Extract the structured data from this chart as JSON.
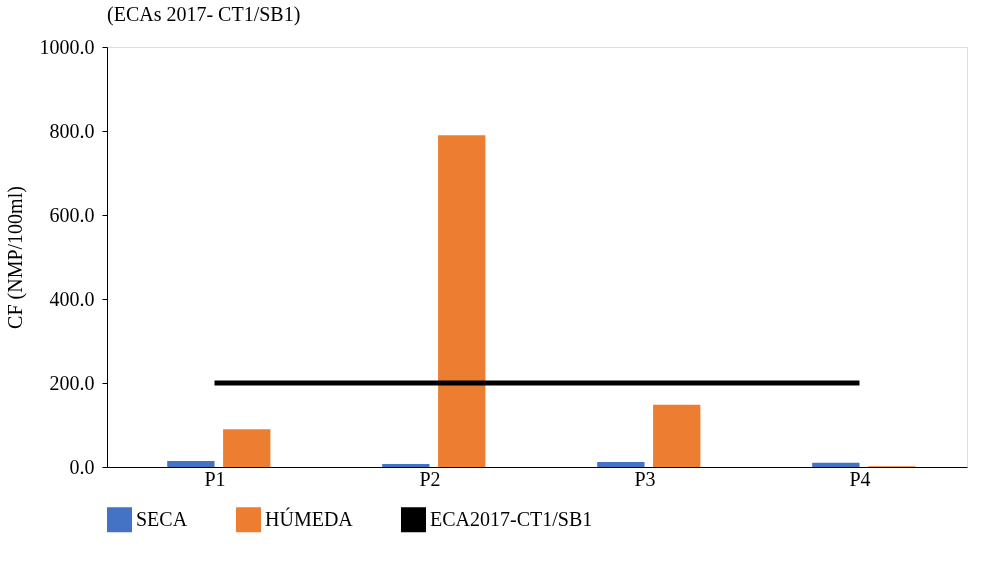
{
  "chart_data": {
    "type": "bar",
    "title": "(ECAs 2017- CT1/SB1)",
    "ylabel": "CF (NMP/100ml)",
    "categories": [
      "P1",
      "P2",
      "P3",
      "P4"
    ],
    "series": [
      {
        "name": "SECA",
        "color": "#4472c4",
        "values": [
          14,
          7,
          12,
          10
        ]
      },
      {
        "name": "HÚMEDA",
        "color": "#ed7d31",
        "values": [
          90,
          790,
          148,
          2
        ]
      },
      {
        "name": "ECA2017-CT1/SB1",
        "color": "#000000",
        "type": "line",
        "values": [
          200,
          200,
          200,
          200
        ]
      }
    ],
    "ylim": [
      0,
      1000
    ],
    "yticks": [
      {
        "value": 0,
        "label": "0.0"
      },
      {
        "value": 200,
        "label": "200.0"
      },
      {
        "value": 400,
        "label": "400.0"
      },
      {
        "value": 600,
        "label": "600.0"
      },
      {
        "value": 800,
        "label": "800.0"
      },
      {
        "value": 1000,
        "label": "1000.0"
      }
    ],
    "grid": false,
    "legend": "bottom"
  }
}
